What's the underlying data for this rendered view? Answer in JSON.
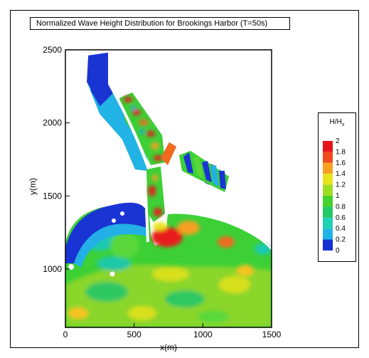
{
  "chart_data": {
    "type": "heatmap",
    "title": "Normalized Wave Height Distribution for Brookings Harbor (T=50s)",
    "xlabel": "x(m)",
    "ylabel": "y(m)",
    "xlim": [
      0,
      1500
    ],
    "ylim": [
      600,
      2500
    ],
    "x_ticks": [
      0,
      500,
      1000,
      1500
    ],
    "y_ticks": [
      1000,
      1500,
      2000,
      2500
    ],
    "x_tick_labels": [
      "0",
      "500",
      "1000",
      "1500"
    ],
    "y_tick_labels": [
      "1000",
      "1500",
      "2000",
      "2500"
    ],
    "legend": {
      "title": "H/H",
      "title_subscript": "s",
      "placement": "right",
      "levels": [
        2,
        1.8,
        1.6,
        1.4,
        1.2,
        1,
        0.8,
        0.6,
        0.4,
        0.2,
        0
      ],
      "level_labels": [
        "2",
        "1.8",
        "1.6",
        "1.4",
        "1.2",
        "1",
        "0.8",
        "0.6",
        "0.4",
        "0.2",
        "0"
      ],
      "colors": [
        "#e8141c",
        "#f04a1e",
        "#f8a020",
        "#e8e41c",
        "#9cde24",
        "#46d22c",
        "#22c864",
        "#1ed2b4",
        "#20b4e6",
        "#1c6ef0",
        "#1430d2"
      ]
    }
  }
}
